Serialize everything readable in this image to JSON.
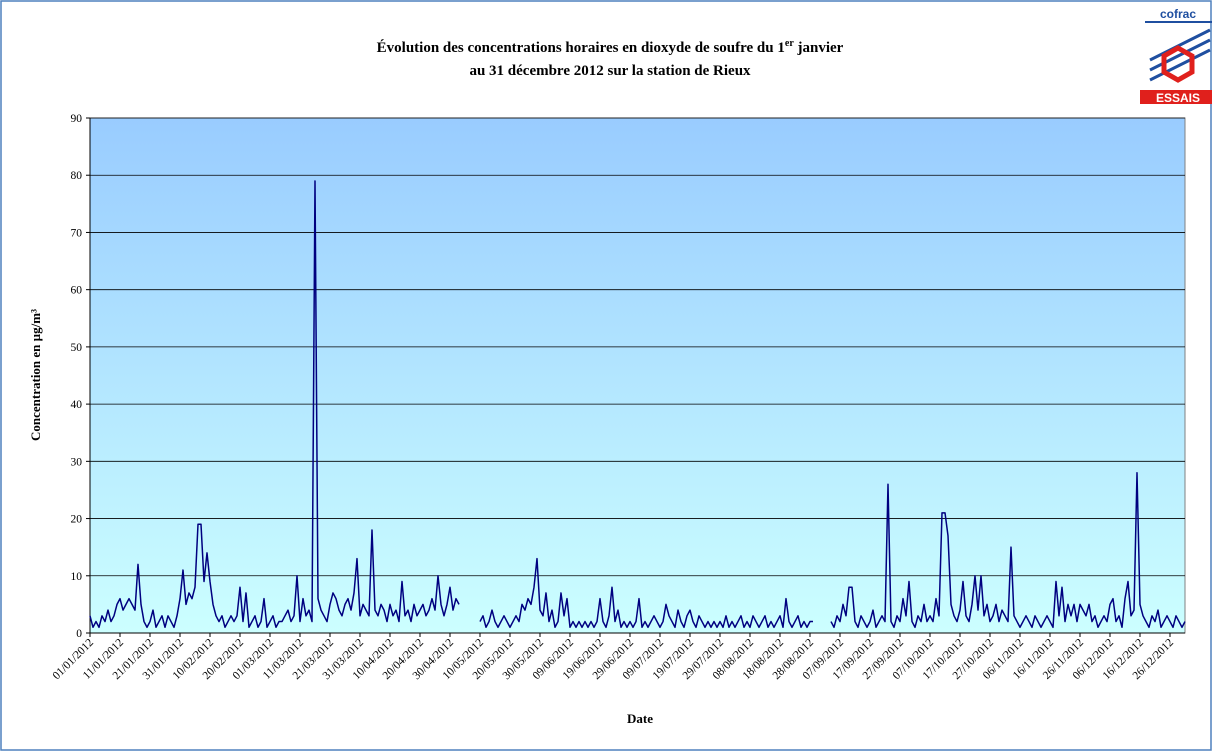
{
  "chart_data": {
    "type": "line",
    "title": {
      "line1": "Évolution des concentrations horaires en dioxyde de soufre du 1",
      "superscript": "er",
      "line1_end": " janvier",
      "line2": "au 31 décembre 2012 sur la station de Rieux"
    },
    "logo": {
      "top": "cofrac",
      "bottom": "ESSAIS"
    },
    "x_label": "Date",
    "y_label": "Concentration en µg/m³",
    "ylim": [
      0,
      90
    ],
    "yticks": [
      0,
      10,
      20,
      30,
      40,
      50,
      60,
      70,
      80,
      90
    ],
    "grid": true,
    "categories": [
      "01/01/2012",
      null,
      null,
      null,
      null,
      null,
      null,
      null,
      null,
      null,
      "11/01/2012",
      null,
      null,
      null,
      null,
      null,
      null,
      null,
      null,
      null,
      "21/01/2012",
      null,
      null,
      null,
      null,
      null,
      null,
      null,
      null,
      null,
      "31/01/2012",
      null,
      null,
      null,
      null,
      null,
      null,
      null,
      null,
      null,
      "10/02/2012",
      null,
      null,
      null,
      null,
      null,
      null,
      null,
      null,
      null,
      "20/02/2012",
      null,
      null,
      null,
      null,
      null,
      null,
      null,
      null,
      null,
      "01/03/2012",
      null,
      null,
      null,
      null,
      null,
      null,
      null,
      null,
      null,
      "11/03/2012",
      null,
      null,
      null,
      null,
      null,
      null,
      null,
      null,
      null,
      "21/03/2012",
      null,
      null,
      null,
      null,
      null,
      null,
      null,
      null,
      null,
      "31/03/2012",
      null,
      null,
      null,
      null,
      null,
      null,
      null,
      null,
      null,
      "10/04/2012",
      null,
      null,
      null,
      null,
      null,
      null,
      null,
      null,
      null,
      "20/04/2012",
      null,
      null,
      null,
      null,
      null,
      null,
      null,
      null,
      null,
      "30/04/2012",
      null,
      null,
      null,
      null,
      null,
      null,
      null,
      null,
      null,
      "10/05/2012",
      null,
      null,
      null,
      null,
      null,
      null,
      null,
      null,
      null,
      "20/05/2012",
      null,
      null,
      null,
      null,
      null,
      null,
      null,
      null,
      null,
      "30/05/2012",
      null,
      null,
      null,
      null,
      null,
      null,
      null,
      null,
      null,
      "09/06/2012",
      null,
      null,
      null,
      null,
      null,
      null,
      null,
      null,
      null,
      "19/06/2012",
      null,
      null,
      null,
      null,
      null,
      null,
      null,
      null,
      null,
      "29/06/2012",
      null,
      null,
      null,
      null,
      null,
      null,
      null,
      null,
      null,
      "09/07/2012",
      null,
      null,
      null,
      null,
      null,
      null,
      null,
      null,
      null,
      "19/07/2012",
      null,
      null,
      null,
      null,
      null,
      null,
      null,
      null,
      null,
      "29/07/2012",
      null,
      null,
      null,
      null,
      null,
      null,
      null,
      null,
      null,
      "08/08/2012",
      null,
      null,
      null,
      null,
      null,
      null,
      null,
      null,
      null,
      "18/08/2012",
      null,
      null,
      null,
      null,
      null,
      null,
      null,
      null,
      null,
      "28/08/2012",
      null,
      null,
      null,
      null,
      null,
      null,
      null,
      null,
      null,
      "07/09/2012",
      null,
      null,
      null,
      null,
      null,
      null,
      null,
      null,
      null,
      "17/09/2012",
      null,
      null,
      null,
      null,
      null,
      null,
      null,
      null,
      null,
      "27/09/2012",
      null,
      null,
      null,
      null,
      null,
      null,
      null,
      null,
      null,
      "07/10/2012",
      null,
      null,
      null,
      null,
      null,
      null,
      null,
      null,
      null,
      "17/10/2012",
      null,
      null,
      null,
      null,
      null,
      null,
      null,
      null,
      null,
      "27/10/2012",
      null,
      null,
      null,
      null,
      null,
      null,
      null,
      null,
      null,
      "06/11/2012",
      null,
      null,
      null,
      null,
      null,
      null,
      null,
      null,
      null,
      "16/11/2012",
      null,
      null,
      null,
      null,
      null,
      null,
      null,
      null,
      null,
      "26/11/2012",
      null,
      null,
      null,
      null,
      null,
      null,
      null,
      null,
      null,
      "06/12/2012",
      null,
      null,
      null,
      null,
      null,
      null,
      null,
      null,
      null,
      "16/12/2012",
      null,
      null,
      null,
      null,
      null,
      null,
      null,
      null,
      null,
      "26/12/2012",
      null,
      null,
      null,
      null,
      null
    ],
    "color": "#000080",
    "values": [
      3,
      1,
      2,
      1,
      3,
      2,
      4,
      2,
      3,
      5,
      6,
      4,
      5,
      6,
      5,
      4,
      12,
      5,
      2,
      1,
      2,
      4,
      1,
      2,
      3,
      1,
      3,
      2,
      1,
      3,
      6,
      11,
      5,
      7,
      6,
      8,
      19,
      19,
      9,
      14,
      9,
      5,
      3,
      2,
      3,
      1,
      2,
      3,
      2,
      3,
      8,
      2,
      7,
      1,
      2,
      3,
      1,
      2,
      6,
      1,
      2,
      3,
      1,
      2,
      2,
      3,
      4,
      2,
      3,
      10,
      2,
      6,
      3,
      4,
      2,
      79,
      6,
      4,
      3,
      2,
      5,
      7,
      6,
      4,
      3,
      5,
      6,
      4,
      7,
      13,
      3,
      5,
      4,
      3,
      18,
      4,
      3,
      5,
      4,
      2,
      5,
      3,
      4,
      2,
      9,
      3,
      4,
      2,
      5,
      3,
      4,
      5,
      3,
      4,
      6,
      4,
      10,
      5,
      3,
      5,
      8,
      4,
      6,
      5,
      null,
      null,
      null,
      null,
      null,
      null,
      2,
      3,
      1,
      2,
      4,
      2,
      1,
      2,
      3,
      2,
      1,
      2,
      3,
      2,
      5,
      4,
      6,
      5,
      8,
      13,
      4,
      3,
      7,
      2,
      4,
      1,
      2,
      7,
      3,
      6,
      1,
      2,
      1,
      2,
      1,
      2,
      1,
      2,
      1,
      2,
      6,
      2,
      1,
      3,
      8,
      2,
      4,
      1,
      2,
      1,
      2,
      1,
      2,
      6,
      1,
      2,
      1,
      2,
      3,
      2,
      1,
      2,
      5,
      3,
      2,
      1,
      4,
      2,
      1,
      3,
      4,
      2,
      1,
      3,
      2,
      1,
      2,
      1,
      2,
      1,
      2,
      1,
      3,
      1,
      2,
      1,
      2,
      3,
      1,
      2,
      1,
      3,
      2,
      1,
      2,
      3,
      1,
      2,
      1,
      2,
      3,
      1,
      6,
      2,
      1,
      2,
      3,
      1,
      2,
      1,
      2,
      2,
      null,
      null,
      null,
      null,
      null,
      2,
      1,
      3,
      2,
      5,
      3,
      8,
      8,
      2,
      1,
      3,
      2,
      1,
      2,
      4,
      1,
      2,
      3,
      2,
      26,
      2,
      1,
      3,
      2,
      6,
      3,
      9,
      2,
      1,
      3,
      2,
      5,
      2,
      3,
      2,
      6,
      3,
      21,
      21,
      17,
      5,
      3,
      2,
      4,
      9,
      3,
      2,
      5,
      10,
      4,
      10,
      3,
      5,
      2,
      3,
      5,
      2,
      4,
      3,
      2,
      15,
      3,
      2,
      1,
      2,
      3,
      2,
      1,
      3,
      2,
      1,
      2,
      3,
      2,
      1,
      9,
      3,
      8,
      2,
      5,
      3,
      5,
      2,
      5,
      4,
      3,
      5,
      2,
      3,
      1,
      2,
      3,
      2,
      5,
      6,
      2,
      3,
      1,
      6,
      9,
      3,
      4,
      28,
      5,
      3,
      2,
      1,
      3,
      2,
      4,
      1,
      2,
      3,
      2,
      1,
      3,
      2,
      1,
      2
    ]
  }
}
